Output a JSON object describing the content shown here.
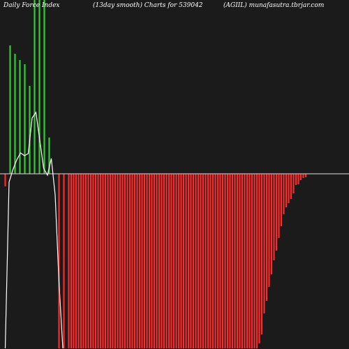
{
  "header": {
    "left": "Daily Force  Index",
    "center": "(13day smooth) Charts for 539042",
    "right": "(AGIIL) munafasutra.tbrjar.com"
  },
  "colors": {
    "background": "#1b1b1b",
    "positive": "#33cc33",
    "negative": "#ff2a2a",
    "zero_line": "#b8b8b8",
    "smooth_line": "#ffffff",
    "text": "#ffffff"
  },
  "chart_data": {
    "type": "bar",
    "title": "",
    "xlabel": "",
    "ylabel": "",
    "ylim": [
      -250,
      250
    ],
    "grid": false,
    "legend": "none",
    "values": [
      -18,
      0,
      184,
      0,
      172,
      0,
      163,
      0,
      157,
      0,
      126,
      0,
      250,
      0,
      250,
      0,
      250,
      0,
      52,
      0,
      0,
      0,
      -250,
      0,
      -250,
      0,
      -250,
      -250,
      -250,
      -250,
      -250,
      -250,
      -250,
      -250,
      -250,
      -250,
      -250,
      -250,
      -250,
      -250,
      -250,
      -250,
      -250,
      -250,
      -250,
      -250,
      -250,
      -250,
      -250,
      -250,
      -250,
      -250,
      -250,
      -250,
      -250,
      -250,
      -250,
      -250,
      -250,
      -250,
      -250,
      -250,
      -250,
      -250,
      -250,
      -250,
      -250,
      -250,
      -250,
      -250,
      -250,
      -250,
      -250,
      -250,
      -250,
      -250,
      -250,
      -250,
      -250,
      -250,
      -250,
      -250,
      -250,
      -250,
      -250,
      -250,
      -250,
      -250,
      -250,
      -250,
      -250,
      -250,
      -250,
      -250,
      -250,
      -250,
      -250,
      -250,
      -250,
      -250,
      -250,
      -250,
      -250,
      -250,
      -243,
      -230,
      -200,
      -182,
      -162,
      -144,
      -124,
      -110,
      -92,
      -75,
      -58,
      -48,
      -42,
      -36,
      -28,
      -16,
      -15,
      -9,
      -6,
      -5
    ],
    "series": [
      {
        "name": "",
        "values": [
          -250,
          -12,
          6,
          20,
          30,
          26,
          29,
          80,
          88,
          48,
          8,
          -2,
          22,
          -30,
          -155,
          -250
        ]
      }
    ]
  }
}
